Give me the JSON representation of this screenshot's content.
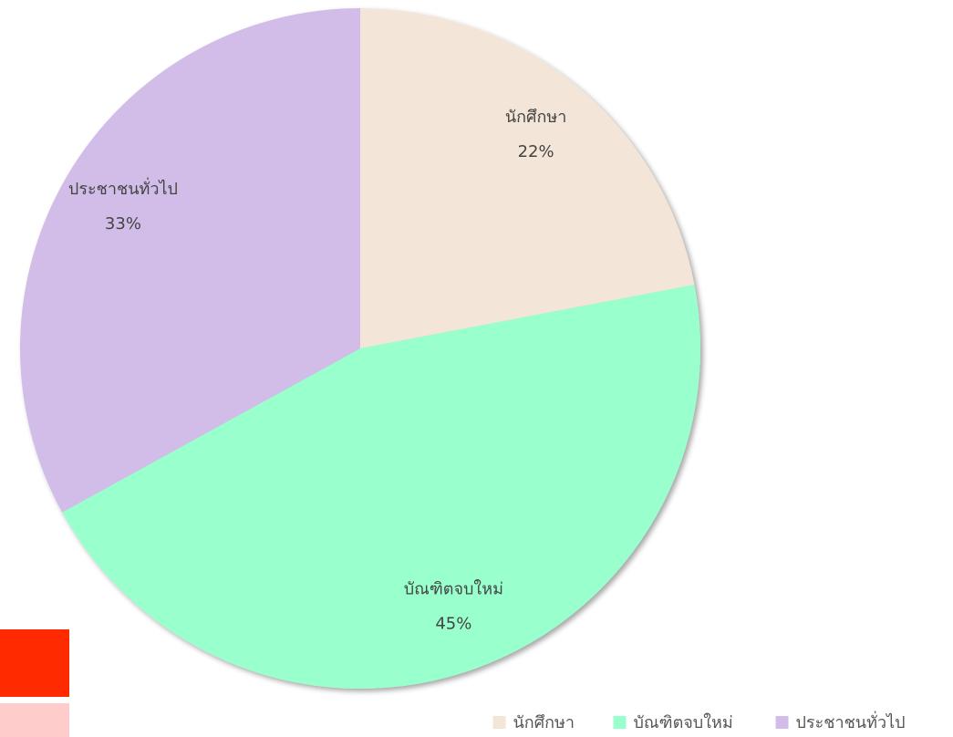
{
  "chart_data": {
    "type": "pie",
    "categories": [
      "นักศึกษา",
      "บัณฑิตจบใหม่",
      "ประชาชนทั่วไป"
    ],
    "values": [
      22,
      45,
      33
    ],
    "value_labels": [
      "22%",
      "45%",
      "33%"
    ],
    "colors": [
      "#f3e6d8",
      "#99ffcc",
      "#d1bde8"
    ],
    "legend": "bottom-right"
  }
}
